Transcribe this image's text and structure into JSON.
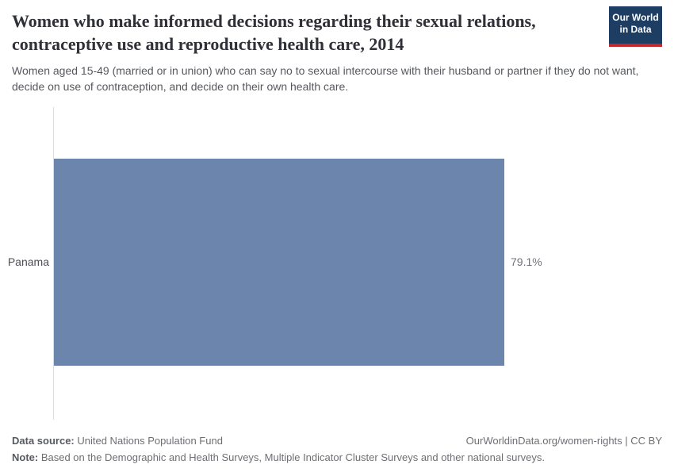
{
  "header": {
    "title": "Women who make informed decisions regarding their sexual relations, contraceptive use and reproductive health care, 2014",
    "subtitle": "Women aged 15-49 (married or in union) who can say no to sexual intercourse with their husband or partner if they do not want, decide on use of contraception, and decide on their own health care.",
    "logo": {
      "line1": "Our World",
      "line2": "in Data"
    }
  },
  "chart_data": {
    "type": "bar",
    "orientation": "horizontal",
    "title": "Women who make informed decisions regarding their sexual relations, contraceptive use and reproductive health care",
    "year": "2014",
    "categories": [
      "Panama"
    ],
    "values": [
      79.1
    ],
    "value_labels": [
      "79.1%"
    ],
    "xlim": [
      0,
      100
    ],
    "grid": false,
    "legend": "none"
  },
  "colors": {
    "bar": "#6c85ac",
    "logo_background": "#1d3d63",
    "logo_accent": "#c0262c"
  },
  "footer": {
    "data_source_label": "Data source:",
    "data_source_value": " United Nations Population Fund",
    "link": "OurWorldinData.org/women-rights | CC BY",
    "note_label": "Note:",
    "note_value": " Based on the Demographic and Health Surveys, Multiple Indicator Cluster Surveys and other national surveys."
  }
}
